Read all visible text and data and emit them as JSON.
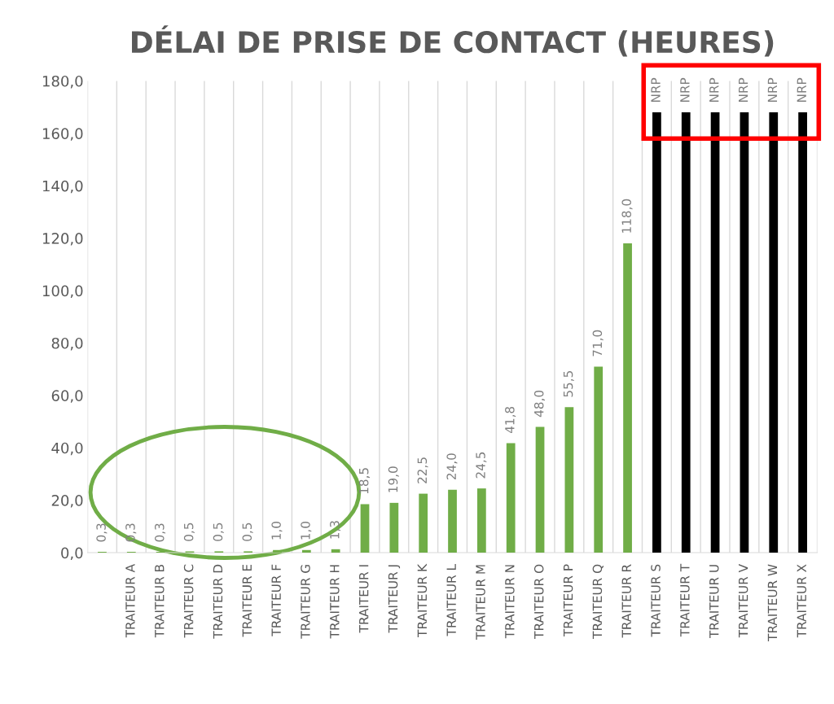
{
  "chart_data": {
    "type": "bar",
    "title": "DÉLAI DE PRISE DE CONTACT (HEURES)",
    "categories": [
      null,
      "TRAITEUR A",
      "TRAITEUR B",
      "TRAITEUR C",
      "TRAITEUR D",
      "TRAITEUR E",
      "TRAITEUR F",
      "TRAITEUR G",
      "TRAITEUR H",
      "TRAITEUR I",
      "TRAITEUR J",
      "TRAITEUR K",
      "TRAITEUR L",
      "TRAITEUR M",
      "TRAITEUR N",
      "TRAITEUR O",
      "TRAITEUR P",
      "TRAITEUR Q",
      "TRAITEUR R",
      "TRAITEUR S",
      "TRAITEUR T",
      "TRAITEUR U",
      "TRAITEUR V",
      "TRAITEUR W",
      "TRAITEUR X"
    ],
    "values": [
      0.3,
      0.3,
      0.3,
      0.5,
      0.5,
      0.5,
      1.0,
      1.0,
      1.3,
      18.5,
      19.0,
      22.5,
      24.0,
      24.5,
      41.8,
      48.0,
      55.5,
      71.0,
      118.0,
      168,
      168,
      168,
      168,
      168,
      168
    ],
    "colors": [
      "#70ad47",
      "#70ad47",
      "#70ad47",
      "#70ad47",
      "#70ad47",
      "#70ad47",
      "#70ad47",
      "#70ad47",
      "#70ad47",
      "#70ad47",
      "#70ad47",
      "#70ad47",
      "#70ad47",
      "#70ad47",
      "#70ad47",
      "#70ad47",
      "#70ad47",
      "#70ad47",
      "#70ad47",
      "#000000",
      "#000000",
      "#000000",
      "#000000",
      "#000000",
      "#000000"
    ],
    "value_labels": [
      "0,3",
      "0,3",
      "0,3",
      "0,5",
      "0,5",
      "0,5",
      "1,0",
      "1,0",
      "1,3",
      "18,5",
      "19,0",
      "22,5",
      "24,0",
      "24,5",
      "41,8",
      "48,0",
      "55,5",
      "71,0",
      "118,0",
      "NRP",
      "NRP",
      "NRP",
      "NRP",
      "NRP",
      "NRP"
    ],
    "ylim": [
      0,
      180
    ],
    "yticks": [
      {
        "value": 0,
        "label": "0,0"
      },
      {
        "value": 20,
        "label": "20,0"
      },
      {
        "value": 40,
        "label": "40,0"
      },
      {
        "value": 60,
        "label": "60,0"
      },
      {
        "value": 80,
        "label": "80,0"
      },
      {
        "value": 100,
        "label": "100,0"
      },
      {
        "value": 120,
        "label": "120,0"
      },
      {
        "value": 140,
        "label": "140,0"
      },
      {
        "value": 160,
        "label": "160,0"
      },
      {
        "value": 180,
        "label": "180,0"
      }
    ],
    "grid": "x",
    "legend": false
  }
}
